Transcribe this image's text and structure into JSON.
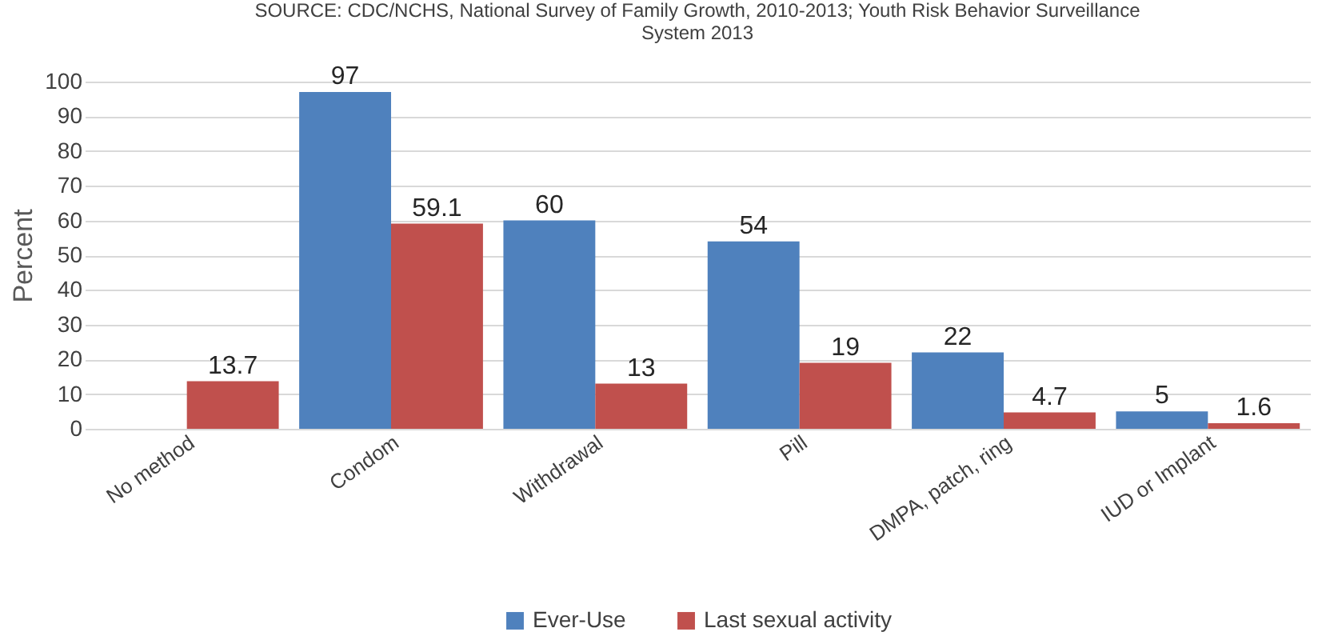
{
  "chart_data": {
    "type": "bar",
    "annotations": [
      "SOURCE: CDC/NCHS, National Survey of Family Growth, 2010-2013; Youth Risk Behavior Surveillance System 2013"
    ],
    "ylabel": "Percent",
    "categories": [
      "No method",
      "Condom",
      "Withdrawal",
      "Pill",
      "DMPA, patch, ring",
      "IUD or Implant"
    ],
    "series": [
      {
        "name": "Ever-Use",
        "color": "#4f81bd",
        "values": [
          null,
          97,
          60,
          54,
          22,
          5
        ]
      },
      {
        "name": "Last sexual activity",
        "color": "#c0504d",
        "values": [
          13.7,
          59.1,
          13,
          19,
          4.7,
          1.6
        ]
      }
    ],
    "ylim": [
      0,
      100
    ],
    "yticks": [
      0,
      10,
      20,
      30,
      40,
      50,
      60,
      70,
      80,
      90,
      100
    ],
    "grid": "y",
    "legend": "bottom",
    "data_labels": true
  }
}
